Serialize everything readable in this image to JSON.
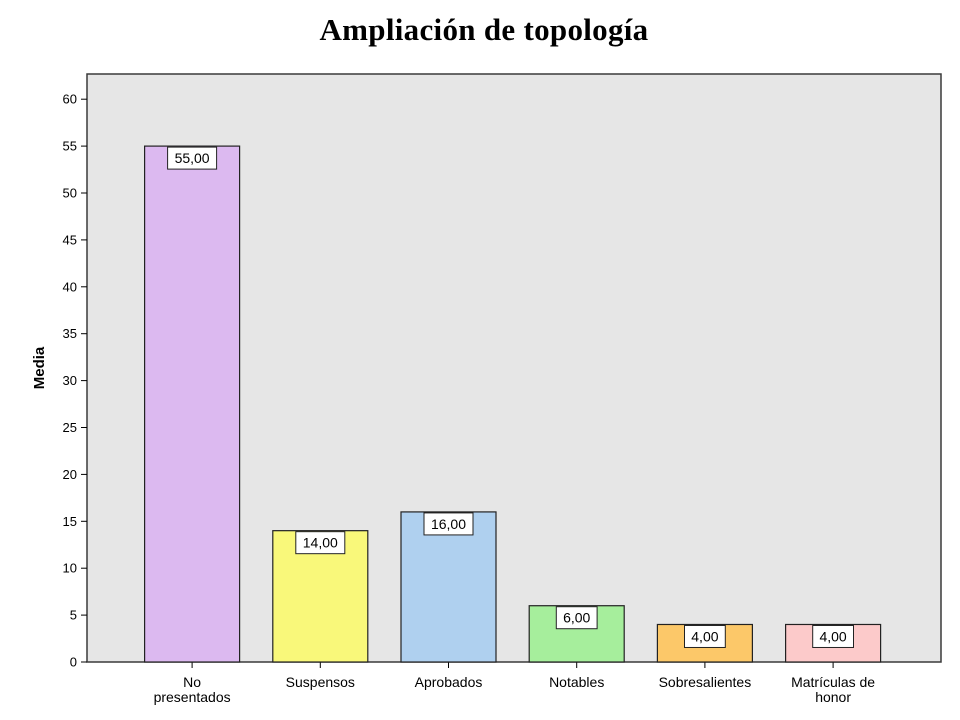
{
  "chart_data": {
    "type": "bar",
    "title": "Ampliación de topología",
    "ylabel": "Media",
    "xlabel": "",
    "ylim": [
      0,
      62
    ],
    "yticks": [
      0,
      5,
      10,
      15,
      20,
      25,
      30,
      35,
      40,
      45,
      50,
      55,
      60
    ],
    "categories": [
      [
        "No",
        "presentados"
      ],
      [
        "Suspensos"
      ],
      [
        "Aprobados"
      ],
      [
        "Notables"
      ],
      [
        "Sobresalientes"
      ],
      [
        "Matrículas de",
        "honor"
      ]
    ],
    "values": [
      55,
      14,
      16,
      6,
      4,
      4
    ],
    "data_labels": [
      "55,00",
      "14,00",
      "16,00",
      "6,00",
      "4,00",
      "4,00"
    ],
    "colors": [
      "#dcb9f0",
      "#f9f87a",
      "#afd0ef",
      "#a6ee9c",
      "#fcc869",
      "#fccaca"
    ],
    "plot_background": "#e6e6e6",
    "grid": false,
    "legend": "none"
  }
}
